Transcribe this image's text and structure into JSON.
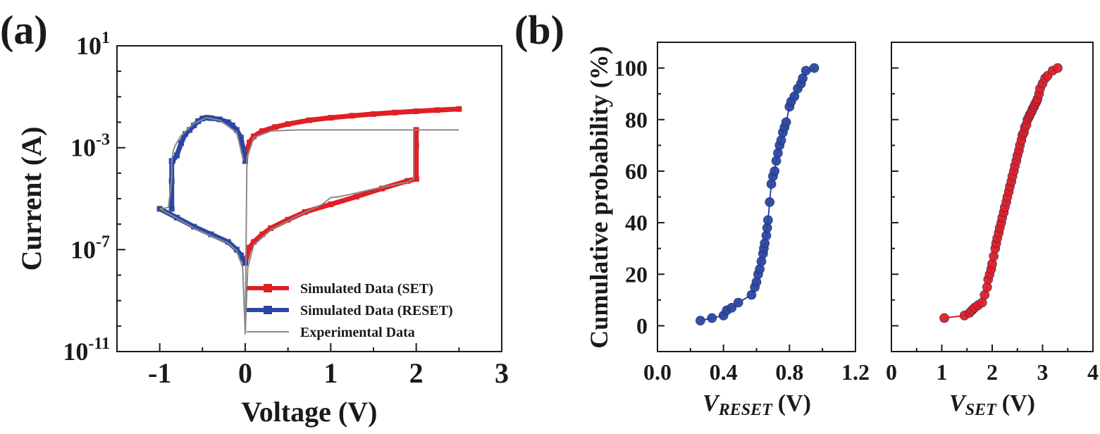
{
  "panels": {
    "a_label": "(a)",
    "b_label": "(b)"
  },
  "chart_data": [
    {
      "id": "a",
      "type": "line",
      "xlabel": "Voltage (V)",
      "ylabel": "Current (A)",
      "xlim": [
        -1.5,
        3
      ],
      "ylim": [
        1e-11,
        10
      ],
      "yscale": "log",
      "xticks": [
        -1,
        0,
        1,
        2,
        3
      ],
      "xtick_labels": [
        "-1",
        "0",
        "1",
        "2",
        "3"
      ],
      "yticks": [
        1e-11,
        1e-07,
        0.001,
        10
      ],
      "ytick_labels": [
        {
          "base": "10",
          "exp": "-11"
        },
        {
          "base": "10",
          "exp": "-7"
        },
        {
          "base": "10",
          "exp": "-3"
        },
        {
          "base": "10",
          "exp": "1"
        }
      ],
      "legend_position": "bottom-right",
      "series": [
        {
          "name": "Simulated Data (SET)",
          "color": "#e01f26",
          "marker": "square",
          "segments": [
            {
              "x": [
                0.0,
                0.05,
                0.1,
                0.2,
                0.3,
                0.5,
                0.7,
                1.0,
                1.3,
                1.6,
                1.9,
                2.0
              ],
              "y": [
                3e-08,
                1.2e-07,
                2e-07,
                4e-07,
                7e-07,
                1.5e-06,
                3e-06,
                6e-06,
                1.2e-05,
                2.5e-05,
                5e-05,
                6e-05
              ]
            },
            {
              "x": [
                2.0,
                2.0,
                2.0
              ],
              "y": [
                6e-05,
                0.0012,
                0.005
              ]
            },
            {
              "x": [
                0.0,
                0.02,
                0.05,
                0.1,
                0.2,
                0.35,
                0.5,
                0.75,
                1.0,
                1.25,
                1.5,
                1.75,
                2.0,
                2.25,
                2.5
              ],
              "y": [
                0.0003,
                0.0008,
                0.0016,
                0.0028,
                0.0045,
                0.0065,
                0.0085,
                0.012,
                0.015,
                0.018,
                0.021,
                0.024,
                0.027,
                0.03,
                0.033
              ]
            }
          ]
        },
        {
          "name": "Simulated Data (RESET)",
          "color": "#2b47a3",
          "marker": "square",
          "segments": [
            {
              "x": [
                0.0,
                -0.02,
                -0.05,
                -0.1,
                -0.15,
                -0.2,
                -0.3,
                -0.4,
                -0.45,
                -0.5,
                -0.55,
                -0.6,
                -0.65,
                -0.7,
                -0.75,
                -0.8,
                -0.85
              ],
              "y": [
                0.0003,
                0.0008,
                0.0025,
                0.005,
                0.0075,
                0.01,
                0.013,
                0.0145,
                0.015,
                0.014,
                0.011,
                0.0075,
                0.005,
                0.0035,
                0.0015,
                0.0005,
                0.0003
              ]
            },
            {
              "x": [
                -0.86,
                -0.86,
                -0.86
              ],
              "y": [
                0.0003,
                5e-05,
                4e-06
              ]
            },
            {
              "x": [
                -1.0,
                -0.8,
                -0.6,
                -0.4,
                -0.2,
                -0.1,
                -0.05,
                0.0
              ],
              "y": [
                4e-06,
                1.8e-06,
                8e-07,
                4e-07,
                2e-07,
                1e-07,
                6e-08,
                3e-08
              ]
            }
          ]
        },
        {
          "name": "Experimental Data",
          "color": "#8a8a8a",
          "marker": "none",
          "segments": [
            {
              "x": [
                -1.0,
                -0.8,
                -0.6,
                -0.4,
                -0.2,
                -0.1,
                -0.03,
                0.0,
                0.03,
                0.1,
                0.3,
                0.6,
                0.9,
                1.0,
                1.1,
                1.2,
                1.5,
                1.9,
                1.97
              ],
              "y": [
                4e-06,
                1.7e-06,
                7e-07,
                3.5e-07,
                1.8e-07,
                9e-08,
                2e-08,
                5e-11,
                2e-08,
                1.5e-07,
                6e-07,
                2e-06,
                6e-06,
                1.1e-05,
                1.2e-05,
                1.4e-05,
                2.4e-05,
                4.5e-05,
                6e-05
              ]
            },
            {
              "x": [
                1.97,
                1.97,
                2.0,
                2.5
              ],
              "y": [
                6e-05,
                0.005,
                0.005,
                0.005
              ]
            },
            {
              "x": [
                0.0,
                0.02,
                0.1,
                0.3,
                0.6,
                1.0,
                1.6,
                2.0
              ],
              "y": [
                5e-11,
                0.0004,
                0.0025,
                0.0045,
                0.005,
                0.005,
                0.005,
                0.005
              ]
            },
            {
              "x": [
                -0.02,
                -0.1,
                -0.3,
                -0.45,
                -0.6,
                -0.75,
                -0.82,
                -0.84,
                -0.86,
                -0.86,
                -0.9,
                -1.0
              ],
              "y": [
                0.0003,
                0.004,
                0.012,
                0.015,
                0.009,
                0.003,
                0.0012,
                0.0008,
                0.0003,
                5e-05,
                4.5e-06,
                4e-06
              ]
            }
          ]
        }
      ]
    },
    {
      "id": "b-left",
      "type": "line",
      "xlabel_main": "V",
      "xlabel_sub": "RESET",
      "xlabel_unit": "(V)",
      "ylabel": "Cumulative probability (%)",
      "xlim": [
        0.0,
        1.2
      ],
      "ylim": [
        -10,
        110
      ],
      "xticks": [
        0.0,
        0.4,
        0.8,
        1.2
      ],
      "xtick_labels": [
        "0.0",
        "0.4",
        "0.8",
        "1.2"
      ],
      "yticks": [
        0,
        20,
        40,
        60,
        80,
        100
      ],
      "ytick_labels": [
        "0",
        "20",
        "40",
        "60",
        "80",
        "100"
      ],
      "series": [
        {
          "name": "",
          "color": "#2b47a3",
          "marker": "circle",
          "x": [
            0.26,
            0.33,
            0.4,
            0.42,
            0.45,
            0.49,
            0.57,
            0.59,
            0.6,
            0.61,
            0.62,
            0.63,
            0.64,
            0.645,
            0.65,
            0.66,
            0.665,
            0.67,
            0.68,
            0.69,
            0.7,
            0.71,
            0.72,
            0.73,
            0.74,
            0.75,
            0.76,
            0.77,
            0.78,
            0.8,
            0.81,
            0.83,
            0.85,
            0.87,
            0.88,
            0.9,
            0.95
          ],
          "y": [
            2,
            3,
            4,
            6,
            7,
            9,
            12,
            15,
            17,
            20,
            22,
            25,
            28,
            30,
            32,
            35,
            38,
            41,
            48,
            55,
            58,
            60,
            64,
            67,
            70,
            72,
            75,
            77,
            79,
            85,
            87,
            89,
            92,
            94,
            96,
            99,
            100
          ]
        }
      ]
    },
    {
      "id": "b-right",
      "type": "line",
      "xlabel_main": "V",
      "xlabel_sub": "SET",
      "xlabel_unit": "(V)",
      "xlim": [
        0,
        4
      ],
      "ylim": [
        -10,
        110
      ],
      "xticks": [
        0,
        1,
        2,
        3,
        4
      ],
      "xtick_labels": [
        "0",
        "1",
        "2",
        "3",
        "4"
      ],
      "series": [
        {
          "name": "",
          "color": "#e01f26",
          "marker": "circle",
          "x": [
            1.05,
            1.45,
            1.55,
            1.6,
            1.65,
            1.72,
            1.8,
            1.85,
            1.9,
            1.92,
            1.95,
            1.98,
            2.0,
            2.03,
            2.06,
            2.08,
            2.1,
            2.13,
            2.15,
            2.18,
            2.2,
            2.23,
            2.25,
            2.28,
            2.3,
            2.33,
            2.35,
            2.38,
            2.4,
            2.43,
            2.45,
            2.48,
            2.5,
            2.53,
            2.55,
            2.58,
            2.6,
            2.63,
            2.65,
            2.68,
            2.7,
            2.73,
            2.75,
            2.78,
            2.8,
            2.83,
            2.85,
            2.88,
            2.9,
            2.93,
            2.95,
            3.0,
            3.05,
            3.1,
            3.2,
            3.3
          ],
          "y": [
            3,
            4,
            5,
            6,
            7,
            8,
            9,
            12,
            15,
            18,
            20,
            22,
            24,
            27,
            30,
            32,
            34,
            36,
            38,
            40,
            42,
            44,
            46,
            48,
            50,
            52,
            54,
            56,
            58,
            60,
            62,
            64,
            66,
            68,
            70,
            72,
            74,
            75,
            77,
            78,
            80,
            81,
            82,
            83,
            84,
            85,
            86,
            87,
            88,
            90,
            92,
            94,
            96,
            97,
            99,
            100
          ]
        }
      ]
    }
  ]
}
